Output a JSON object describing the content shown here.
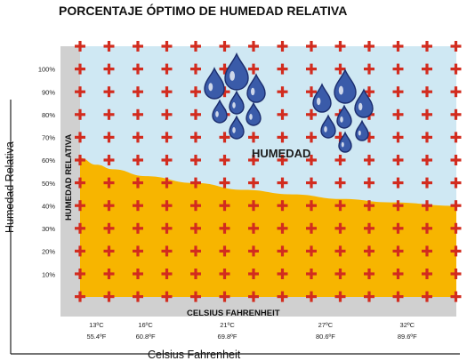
{
  "chart_data": {
    "type": "area",
    "title": "PORCENTAJE ÓPTIMO DE HUMEDAD RELATIVA",
    "outer_xlabel": "Celsius Fahrenheit",
    "outer_ylabel": "Humedad Relativa",
    "inner_xlabel": "CELSIUS FAHRENHEIT",
    "inner_ylabel": "HUMEDAD RELATIVA",
    "region_label": "HUMEDAD",
    "x_range_c": [
      12,
      35
    ],
    "ylim": [
      0,
      110
    ],
    "y_ticks": [
      {
        "value": 10,
        "label": "10%"
      },
      {
        "value": 20,
        "label": "20%"
      },
      {
        "value": 30,
        "label": "30%"
      },
      {
        "value": 40,
        "label": "40%"
      },
      {
        "value": 50,
        "label": "50%"
      },
      {
        "value": 60,
        "label": "60%"
      },
      {
        "value": 70,
        "label": "70%"
      },
      {
        "value": 80,
        "label": "80%"
      },
      {
        "value": 90,
        "label": "90%"
      },
      {
        "value": 100,
        "label": "100%"
      }
    ],
    "x_ticks": [
      {
        "value": 13,
        "celsius": "13ºC",
        "fahrenheit": "55.4ºF"
      },
      {
        "value": 16,
        "celsius": "16ºC",
        "fahrenheit": "60.8ºF"
      },
      {
        "value": 21,
        "celsius": "21ºC",
        "fahrenheit": "69.8ºF"
      },
      {
        "value": 27,
        "celsius": "27ºC",
        "fahrenheit": "80.6ºF"
      },
      {
        "value": 32,
        "celsius": "32ºC",
        "fahrenheit": "89.6ºF"
      }
    ],
    "curve": [
      [
        12,
        61
      ],
      [
        13,
        58
      ],
      [
        14,
        56
      ],
      [
        16,
        53
      ],
      [
        19,
        50
      ],
      [
        22,
        47
      ],
      [
        25,
        45
      ],
      [
        28,
        43
      ],
      [
        31,
        41.5
      ],
      [
        35,
        40
      ]
    ],
    "colors": {
      "upper": "#cfe8f3",
      "lower": "#f7b500",
      "frame": "#d0d0d0",
      "cross": "#d22c1f",
      "drop": "#3a5ba9",
      "drop_dark": "#1b2d6e"
    }
  }
}
